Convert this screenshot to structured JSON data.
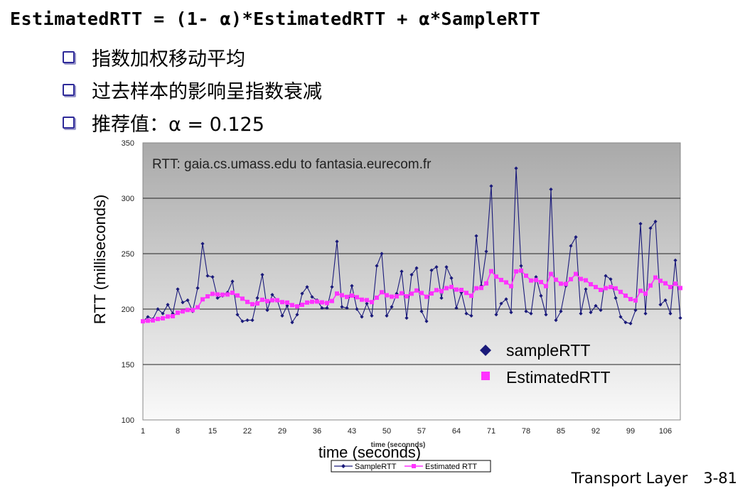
{
  "slide": {
    "formula": "EstimatedRTT = (1- α)*EstimatedRTT + α*SampleRTT",
    "bullets": [
      "指数加权移动平均",
      "过去样本的影响呈指数衰减",
      "推荐值：α = 0.125"
    ],
    "footer_title": "Transport Layer",
    "footer_page": "3-81"
  },
  "chart_data": {
    "type": "line",
    "title": "RTT: gaia.cs.umass.edu to fantasia.eurecom.fr",
    "xlabel": "time (seconds)",
    "xlabel_small": "time (seconnds)",
    "ylabel": "RTT (milliseconds)",
    "ylim": [
      100,
      350
    ],
    "yticks": [
      100,
      150,
      200,
      250,
      300,
      350
    ],
    "xlim": [
      1,
      109
    ],
    "xticks": [
      1,
      8,
      15,
      22,
      29,
      36,
      43,
      50,
      57,
      64,
      71,
      78,
      85,
      92,
      99,
      106
    ],
    "grid": true,
    "colors": {
      "sample": "#1a1a7a",
      "estimated": "#ff33ff"
    },
    "legend_inside": [
      "sampleRTT",
      "EstimatedRTT"
    ],
    "legend_bottom": [
      "SampleRTT",
      "Estimated RTT"
    ],
    "series": [
      {
        "name": "SampleRTT",
        "x": [
          1,
          2,
          3,
          4,
          5,
          6,
          7,
          8,
          9,
          10,
          11,
          12,
          13,
          14,
          15,
          16,
          17,
          18,
          19,
          20,
          21,
          22,
          23,
          24,
          25,
          26,
          27,
          28,
          29,
          30,
          31,
          32,
          33,
          34,
          35,
          36,
          37,
          38,
          39,
          40,
          41,
          42,
          43,
          44,
          45,
          46,
          47,
          48,
          49,
          50,
          51,
          52,
          53,
          54,
          55,
          56,
          57,
          58,
          59,
          60,
          61,
          62,
          63,
          64,
          65,
          66,
          67,
          68,
          69,
          70,
          71,
          72,
          73,
          74,
          75,
          76,
          77,
          78,
          79,
          80,
          81,
          82,
          83,
          84,
          85,
          86,
          87,
          88,
          89,
          90,
          91,
          92,
          93,
          94,
          95,
          96,
          97,
          98,
          99,
          100,
          101,
          102,
          103,
          104,
          105,
          106,
          107,
          108,
          109
        ],
        "values": [
          189,
          193,
          191,
          200,
          196,
          204,
          196,
          218,
          206,
          208,
          198,
          219,
          259,
          230,
          229,
          210,
          212,
          215,
          225,
          195,
          189,
          190,
          190,
          210,
          231,
          199,
          213,
          208,
          194,
          203,
          188,
          195,
          214,
          220,
          211,
          208,
          201,
          201,
          220,
          261,
          202,
          201,
          221,
          200,
          193,
          205,
          194,
          239,
          250,
          194,
          202,
          214,
          234,
          192,
          231,
          237,
          198,
          189,
          235,
          238,
          210,
          238,
          228,
          201,
          215,
          196,
          194,
          266,
          221,
          252,
          311,
          195,
          205,
          209,
          197,
          327,
          239,
          198,
          196,
          229,
          212,
          195,
          308,
          190,
          198,
          221,
          257,
          265,
          196,
          218,
          197,
          203,
          199,
          230,
          227,
          210,
          193,
          188,
          187,
          199,
          277,
          196,
          273,
          279,
          204,
          208,
          196,
          244,
          192
        ]
      },
      {
        "name": "Estimated RTT",
        "x": [
          1,
          2,
          3,
          4,
          5,
          6,
          7,
          8,
          9,
          10,
          11,
          12,
          13,
          14,
          15,
          16,
          17,
          18,
          19,
          20,
          21,
          22,
          23,
          24,
          25,
          26,
          27,
          28,
          29,
          30,
          31,
          32,
          33,
          34,
          35,
          36,
          37,
          38,
          39,
          40,
          41,
          42,
          43,
          44,
          45,
          46,
          47,
          48,
          49,
          50,
          51,
          52,
          53,
          54,
          55,
          56,
          57,
          58,
          59,
          60,
          61,
          62,
          63,
          64,
          65,
          66,
          67,
          68,
          69,
          70,
          71,
          72,
          73,
          74,
          75,
          76,
          77,
          78,
          79,
          80,
          81,
          82,
          83,
          84,
          85,
          86,
          87,
          88,
          89,
          90,
          91,
          92,
          93,
          94,
          95,
          96,
          97,
          98,
          99,
          100,
          101,
          102,
          103,
          104,
          105,
          106,
          107,
          108,
          109
        ],
        "values": [
          189,
          189.5,
          189.8,
          191.1,
          191.7,
          193.3,
          193.6,
          196.7,
          197.9,
          199.2,
          199.1,
          201.6,
          208.8,
          211.5,
          213.7,
          213.2,
          213.0,
          213.2,
          214.7,
          212.3,
          209.4,
          206.5,
          204.4,
          205.1,
          208.4,
          207.2,
          208.0,
          208.0,
          206.3,
          205.9,
          203.6,
          202.5,
          203.9,
          205.9,
          206.6,
          206.8,
          206.1,
          205.5,
          207.3,
          214.0,
          212.5,
          211.0,
          212.2,
          210.7,
          208.5,
          208.1,
          206.3,
          210.3,
          215.2,
          212.5,
          211.2,
          211.5,
          214.3,
          211.5,
          213.9,
          216.8,
          214.5,
          211.1,
          214.1,
          217.1,
          216.2,
          218.9,
          220.0,
          217.6,
          217.3,
          214.6,
          212.0,
          218.8,
          219.1,
          223.2,
          234.2,
          229.3,
          226.3,
          224.1,
          220.7,
          234.0,
          234.7,
          230.1,
          225.8,
          226.2,
          224.4,
          220.7,
          231.7,
          226.5,
          222.9,
          222.7,
          227.0,
          231.7,
          227.2,
          226.0,
          222.4,
          219.9,
          217.3,
          218.9,
          219.9,
          218.7,
          215.5,
          212.1,
          209.0,
          207.8,
          216.5,
          213.9,
          221.3,
          228.5,
          225.5,
          223.3,
          219.9,
          222.9,
          219.0
        ]
      }
    ]
  }
}
